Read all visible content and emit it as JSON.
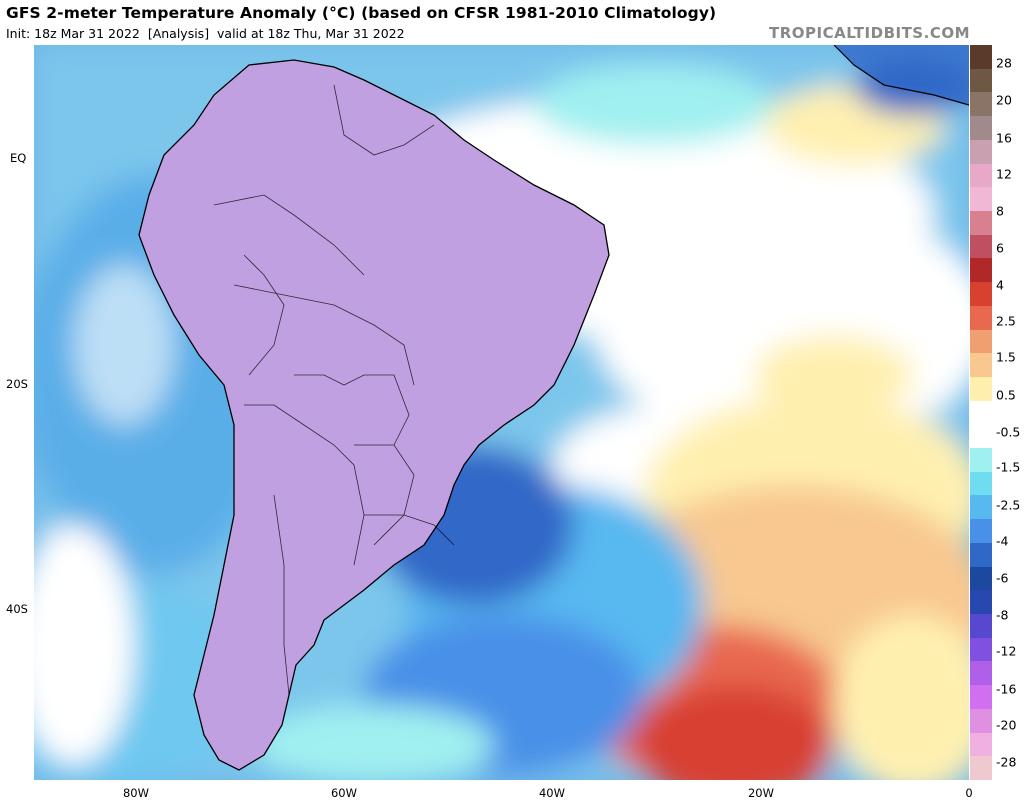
{
  "header": {
    "title": "GFS 2-meter Temperature Anomaly (°C) (based on CFSR 1981-2010 Climatology)",
    "subtitle_init": "Init: 18z Mar 31 2022",
    "subtitle_analysis": "[Analysis]",
    "subtitle_valid": "valid at 18z Thu, Mar 31 2022",
    "brand": "TROPICALTIDBITS.COM"
  },
  "axes": {
    "lat_labels": [
      "EQ",
      "20S",
      "40S"
    ],
    "lon_labels": [
      "80W",
      "60W",
      "40W",
      "20W",
      "0"
    ]
  },
  "colorbar": {
    "labels": [
      "28",
      "20",
      "16",
      "12",
      "8",
      "6",
      "4",
      "2.5",
      "1.5",
      "0.5",
      "-0.5",
      "-1.5",
      "-2.5",
      "-4",
      "-6",
      "-8",
      "-12",
      "-16",
      "-20",
      "-28"
    ],
    "colors": [
      "#5a3a28",
      "#6e5844",
      "#8a7468",
      "#a08a8c",
      "#c8a0b0",
      "#e8a8c8",
      "#f0b8d4",
      "#d88090",
      "#c05060",
      "#b02828",
      "#d84030",
      "#e86850",
      "#f0a070",
      "#f8c890",
      "#fff0b0",
      "#ffffff",
      "#ffffff",
      "#a0f0f0",
      "#70dcf0",
      "#58b8f0",
      "#4890e8",
      "#3068c8",
      "#1c48a0",
      "#2848b0",
      "#5848d0",
      "#8050e0",
      "#b060e8",
      "#d070f0",
      "#e090e0",
      "#f0b0e0",
      "#f0c8d0"
    ]
  },
  "map": {
    "region": "South America and South Atlantic",
    "colors": {
      "ocean_base": "#6fb6e8",
      "warm": "#e86040",
      "cold_purple": "#9a5ae0",
      "cold_blue": "#2858b0",
      "neutral": "#ffffff",
      "coast": "#000000"
    }
  }
}
